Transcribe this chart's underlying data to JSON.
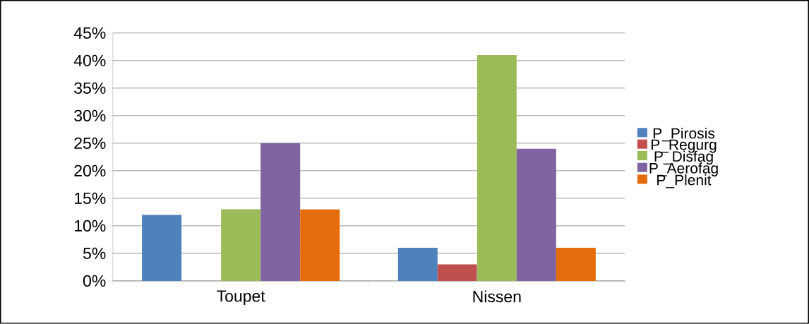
{
  "chart_data": {
    "type": "bar",
    "categories": [
      "Toupet",
      "Nissen"
    ],
    "series": [
      {
        "name": "P_Pirosis",
        "color": "#4f81bd",
        "values": [
          12,
          6
        ]
      },
      {
        "name": "P_Regurg",
        "color": "#c0504d",
        "values": [
          0,
          3
        ]
      },
      {
        "name": "P_Disfag",
        "color": "#9bbb59",
        "values": [
          13,
          41
        ]
      },
      {
        "name": "P_Aerofag",
        "color": "#8064a2",
        "values": [
          25,
          24
        ]
      },
      {
        "name": "P_Plenit",
        "color": "#e46c0a",
        "values": [
          13,
          6
        ]
      }
    ],
    "ylim": [
      0,
      45
    ],
    "yticks": [
      {
        "value": 0,
        "label": "0%"
      },
      {
        "value": 5,
        "label": "5%"
      },
      {
        "value": 10,
        "label": "10%"
      },
      {
        "value": 15,
        "label": "15%"
      },
      {
        "value": 20,
        "label": "20%"
      },
      {
        "value": 25,
        "label": "25%"
      },
      {
        "value": 30,
        "label": "30%"
      },
      {
        "value": 35,
        "label": "35%"
      },
      {
        "value": 40,
        "label": "40%"
      },
      {
        "value": 45,
        "label": "45%"
      }
    ],
    "grid": "y",
    "legend": "right"
  }
}
